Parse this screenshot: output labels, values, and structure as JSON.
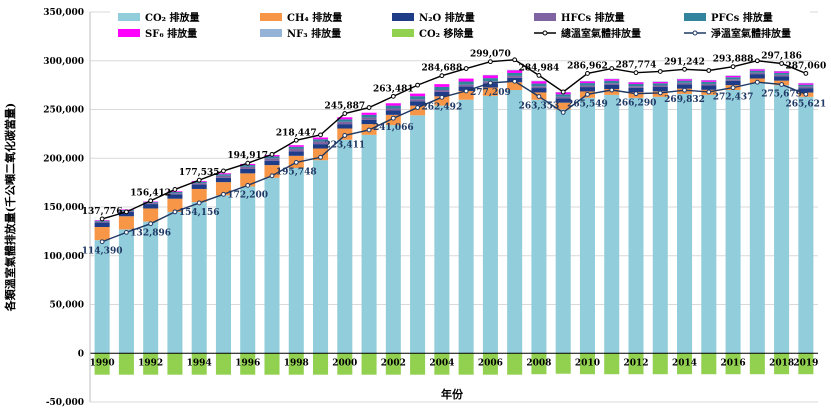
{
  "chart_data": {
    "type": "bar",
    "title": "",
    "xlabel": "年份",
    "ylabel": "各類溫室氣體排放量(千公噸二氧化碳當量)",
    "ylim": [
      -50000,
      350000
    ],
    "yticks": [
      -50000,
      0,
      50000,
      100000,
      150000,
      200000,
      250000,
      300000,
      350000
    ],
    "ytick_labels": [
      "-50,000",
      "0",
      "50,000",
      "100,000",
      "150,000",
      "200,000",
      "250,000",
      "300,000",
      "350,000"
    ],
    "grid": true,
    "legend_position": "top",
    "categories": [
      "1990",
      "1991",
      "1992",
      "1993",
      "1994",
      "1995",
      "1996",
      "1997",
      "1998",
      "1999",
      "2000",
      "2001",
      "2002",
      "2003",
      "2004",
      "2005",
      "2006",
      "2007",
      "2008",
      "2009",
      "2010",
      "2011",
      "2012",
      "2013",
      "2014",
      "2015",
      "2016",
      "2017",
      "2018",
      "2019"
    ],
    "xtick_labels": [
      "1990",
      "1992",
      "1994",
      "1996",
      "1998",
      "2000",
      "2002",
      "2004",
      "2006",
      "2008",
      "2010",
      "2012",
      "2014",
      "2016",
      "2018",
      "2019"
    ],
    "series": [
      {
        "name": "CO₂ 排放量",
        "key": "co2",
        "color": "#92cddc",
        "values": [
          116000,
          127000,
          135000,
          145000,
          155000,
          162000,
          171000,
          180000,
          190000,
          198000,
          219000,
          224000,
          234000,
          244000,
          254000,
          260000,
          264000,
          270000,
          260000,
          250000,
          262000,
          265000,
          262000,
          263000,
          266000,
          265000,
          270000,
          277000,
          275000,
          263000
        ]
      },
      {
        "name": "CH₄ 排放量",
        "key": "ch4",
        "color": "#f79646",
        "values": [
          13500,
          13500,
          13500,
          13500,
          13500,
          13500,
          13500,
          13000,
          12500,
          12000,
          11500,
          11000,
          10500,
          10000,
          9500,
          9000,
          8500,
          8000,
          7500,
          7000,
          6500,
          6000,
          5800,
          5600,
          5400,
          5200,
          5000,
          4800,
          4600,
          4400
        ]
      },
      {
        "name": "N₂O 排放量",
        "key": "n2o",
        "color": "#1f3c88",
        "values": [
          4500,
          4500,
          4500,
          4500,
          4500,
          4500,
          4500,
          4500,
          4500,
          4500,
          4500,
          4500,
          4500,
          4500,
          4500,
          4500,
          4500,
          4500,
          4500,
          4500,
          4500,
          4500,
          4500,
          4500,
          4500,
          4500,
          4500,
          4500,
          4500,
          4500
        ]
      },
      {
        "name": "HFCs 排放量",
        "key": "hfcs",
        "color": "#8064a2",
        "values": [
          1000,
          1000,
          1000,
          1200,
          1500,
          2000,
          2200,
          2400,
          2600,
          2600,
          2400,
          2200,
          2000,
          2000,
          2000,
          2000,
          2000,
          2000,
          1800,
          1500,
          1500,
          1500,
          1500,
          1500,
          1500,
          1500,
          1500,
          1500,
          1500,
          1500
        ]
      },
      {
        "name": "PFCs 排放量",
        "key": "pfcs",
        "color": "#31849b",
        "values": [
          1000,
          1000,
          1000,
          1200,
          1400,
          1600,
          1800,
          2000,
          2200,
          2400,
          2600,
          2800,
          3000,
          3200,
          3200,
          3200,
          3200,
          3000,
          2800,
          2600,
          2600,
          2500,
          2400,
          2300,
          2200,
          2200,
          2100,
          2000,
          2000,
          2000
        ]
      },
      {
        "name": "SF₆ 排放量",
        "key": "sf6",
        "color": "#ff00ff",
        "values": [
          500,
          500,
          600,
          700,
          800,
          1000,
          1200,
          1400,
          1600,
          1800,
          2000,
          2200,
          2400,
          2600,
          2800,
          3000,
          3000,
          2800,
          2500,
          2000,
          1800,
          1700,
          1600,
          1500,
          1500,
          1500,
          1500,
          1500,
          1500,
          1500
        ]
      },
      {
        "name": "NF₃ 排放量",
        "key": "nf3",
        "color": "#95b3d7",
        "values": [
          0,
          0,
          0,
          0,
          0,
          0,
          0,
          0,
          0,
          0,
          0,
          0,
          0,
          0,
          0,
          0,
          300,
          400,
          400,
          400,
          400,
          400,
          400,
          400,
          400,
          400,
          400,
          400,
          400,
          400
        ]
      },
      {
        "name": "CO₂ 移除量",
        "key": "removal",
        "color": "#92d050",
        "values": [
          -22000,
          -22000,
          -22000,
          -22000,
          -22000,
          -22000,
          -22000,
          -22000,
          -22000,
          -22000,
          -22000,
          -22000,
          -22000,
          -22000,
          -22000,
          -22000,
          -22000,
          -22000,
          -21500,
          -21000,
          -21500,
          -21500,
          -21500,
          -21500,
          -21500,
          -21500,
          -21500,
          -21500,
          -21500,
          -21500
        ]
      }
    ],
    "lines": [
      {
        "name": "總溫室氣體排放量",
        "key": "total",
        "color": "#000000",
        "values": [
          137776,
          145000,
          156412,
          168000,
          177535,
          187000,
          194917,
          204000,
          218447,
          224000,
          245887,
          252000,
          263481,
          275000,
          284688,
          292000,
          299070,
          301000,
          284984,
          268000,
          286962,
          292000,
          287774,
          289000,
          291242,
          290000,
          293888,
          300000,
          297186,
          287060
        ]
      },
      {
        "name": "淨溫室氣體排放量",
        "key": "net",
        "color": "#1f3864",
        "values": [
          114390,
          124000,
          132896,
          145000,
          154156,
          163000,
          172200,
          182000,
          195748,
          201000,
          223411,
          229000,
          241066,
          252000,
          262492,
          269000,
          277209,
          279000,
          263353,
          247000,
          265549,
          270000,
          266290,
          267000,
          269832,
          268000,
          272437,
          278000,
          275679,
          265621
        ]
      }
    ],
    "total_labels": [
      {
        "category": "1990",
        "text": "137,776"
      },
      {
        "category": "1992",
        "text": "156,412"
      },
      {
        "category": "1994",
        "text": "177,535"
      },
      {
        "category": "1996",
        "text": "194,917"
      },
      {
        "category": "1998",
        "text": "218,447"
      },
      {
        "category": "2000",
        "text": "245,887"
      },
      {
        "category": "2002",
        "text": "263,481"
      },
      {
        "category": "2004",
        "text": "284,688"
      },
      {
        "category": "2006",
        "text": "299,070"
      },
      {
        "category": "2008",
        "text": "284,984"
      },
      {
        "category": "2010",
        "text": "286,962"
      },
      {
        "category": "2012",
        "text": "287,774"
      },
      {
        "category": "2014",
        "text": "291,242"
      },
      {
        "category": "2016",
        "text": "293,888"
      },
      {
        "category": "2018",
        "text": "297,186"
      },
      {
        "category": "2019",
        "text": "287,060"
      }
    ],
    "net_labels": [
      {
        "category": "1990",
        "text": "114,390"
      },
      {
        "category": "1992",
        "text": "132,896"
      },
      {
        "category": "1994",
        "text": "154,156"
      },
      {
        "category": "1996",
        "text": "172,200"
      },
      {
        "category": "1998",
        "text": "195,748"
      },
      {
        "category": "2000",
        "text": "223,411"
      },
      {
        "category": "2002",
        "text": "241,066"
      },
      {
        "category": "2004",
        "text": "262,492"
      },
      {
        "category": "2006",
        "text": "277,209"
      },
      {
        "category": "2008",
        "text": "263,353"
      },
      {
        "category": "2010",
        "text": "265,549"
      },
      {
        "category": "2012",
        "text": "266,290"
      },
      {
        "category": "2014",
        "text": "269,832"
      },
      {
        "category": "2016",
        "text": "272,437"
      },
      {
        "category": "2018",
        "text": "275,679"
      },
      {
        "category": "2019",
        "text": "265,621"
      }
    ],
    "legend": [
      {
        "label": "CO₂ 排放量",
        "swatch": "box",
        "color": "#92cddc"
      },
      {
        "label": "CH₄ 排放量",
        "swatch": "box",
        "color": "#f79646"
      },
      {
        "label": "N₂O 排放量",
        "swatch": "box",
        "color": "#1f3c88"
      },
      {
        "label": "HFCs 排放量",
        "swatch": "box",
        "color": "#8064a2"
      },
      {
        "label": "PFCs 排放量",
        "swatch": "box",
        "color": "#31849b"
      },
      {
        "label": "SF₆ 排放量",
        "swatch": "box",
        "color": "#ff00ff"
      },
      {
        "label": "NF₃ 排放量",
        "swatch": "box",
        "color": "#95b3d7"
      },
      {
        "label": "CO₂ 移除量",
        "swatch": "box",
        "color": "#92d050"
      },
      {
        "label": "總溫室氣體排放量",
        "swatch": "line",
        "color": "#000000"
      },
      {
        "label": "淨溫室氣體排放量",
        "swatch": "line",
        "color": "#1f3864"
      }
    ]
  }
}
